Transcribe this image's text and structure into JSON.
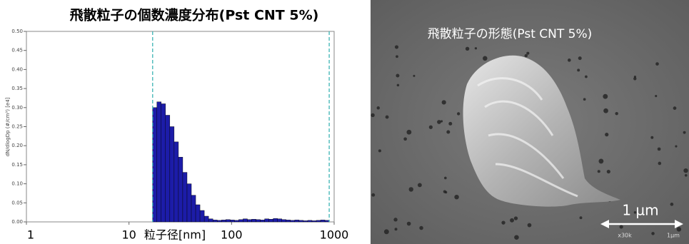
{
  "chart_data": {
    "type": "histogram",
    "title": "飛散粒子の個数濃度分布(Pst CNT 5%)",
    "x_label": "粒子径[nm]",
    "y_label": "dN/dlogDp (#/cm³) [e4]",
    "x_log": true,
    "xlim": [
      1,
      1000
    ],
    "xticks": [
      1,
      10,
      100,
      1000
    ],
    "ylim": [
      0,
      0.5
    ],
    "yticks": [
      {
        "value": 0,
        "label": "0.00"
      },
      {
        "value": 0.05,
        "label": "0.05"
      },
      {
        "value": 0.1,
        "label": "0.10"
      },
      {
        "value": 0.15,
        "label": "0.15"
      },
      {
        "value": 0.2,
        "label": "0.20"
      },
      {
        "value": 0.25,
        "label": "0.25"
      },
      {
        "value": 0.3,
        "label": "0.30"
      },
      {
        "value": 0.35,
        "label": "0.35"
      },
      {
        "value": 0.4,
        "label": "0.40"
      },
      {
        "value": 0.45,
        "label": "0.45"
      },
      {
        "value": 0.5,
        "label": "0.50"
      }
    ],
    "color": "#1c1ca8",
    "vlines": [
      17,
      895
    ],
    "vline_color": "#3cb4b4",
    "bins": [
      16.98,
      18.71,
      20.61,
      22.7,
      25.0,
      27.54,
      30.34,
      33.42,
      36.81,
      40.55,
      44.67,
      49.2,
      54.2,
      59.7,
      65.77,
      72.44,
      79.8,
      87.9,
      96.83,
      106.7,
      117.5,
      129.4,
      142.6,
      157.0,
      173.0,
      190.5,
      209.9,
      231.2,
      254.7,
      280.5,
      309.0,
      340.4,
      375.0,
      413.0,
      455.0,
      501.2,
      552.1,
      608.1,
      669.9,
      737.9,
      812.8,
      895.4
    ],
    "values": [
      0.3,
      0.315,
      0.31,
      0.28,
      0.25,
      0.21,
      0.17,
      0.13,
      0.1,
      0.07,
      0.045,
      0.03,
      0.015,
      0.008,
      0.005,
      0.004,
      0.005,
      0.006,
      0.005,
      0.004,
      0.006,
      0.008,
      0.006,
      0.007,
      0.006,
      0.005,
      0.008,
      0.007,
      0.009,
      0.008,
      0.006,
      0.005,
      0.004,
      0.005,
      0.004,
      0.003,
      0.004,
      0.003,
      0.004,
      0.005,
      0.004
    ]
  },
  "image_panel": {
    "title": "飛散粒子の形態(Pst CNT 5%)",
    "scale_bar_label": "1 µm",
    "magnification": "x30k",
    "scale_text": "1µm"
  }
}
